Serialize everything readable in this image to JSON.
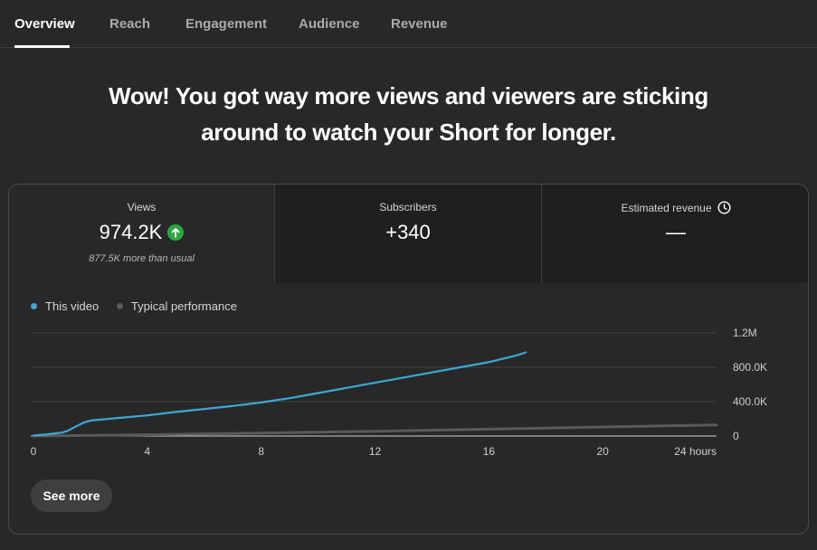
{
  "tabs": [
    {
      "label": "Overview",
      "active": true
    },
    {
      "label": "Reach",
      "active": false
    },
    {
      "label": "Engagement",
      "active": false
    },
    {
      "label": "Audience",
      "active": false
    },
    {
      "label": "Revenue",
      "active": false
    }
  ],
  "headline": {
    "line1": "Wow! You got way more views and viewers are sticking",
    "line2": "around to watch your Short for longer."
  },
  "metrics": {
    "views": {
      "label": "Views",
      "value": "974.2K",
      "sub": "877.5K more than usual",
      "trend_icon": "arrow-up-icon"
    },
    "subscribers": {
      "label": "Subscribers",
      "value": "+340"
    },
    "revenue": {
      "label": "Estimated revenue",
      "value": "—",
      "info_icon": "clock-icon"
    }
  },
  "colors": {
    "accent": "#3ea6d9",
    "typical": "#5a5a5a",
    "up": "#2ba640"
  },
  "chart_data": {
    "type": "line",
    "xlabel": "",
    "ylabel": "",
    "xlim": [
      0,
      24
    ],
    "ylim": [
      0,
      1200000
    ],
    "x_ticks": [
      "0",
      "4",
      "8",
      "12",
      "16",
      "20",
      "24 hours"
    ],
    "y_ticks": [
      "0",
      "400.0K",
      "800.0K",
      "1.2M"
    ],
    "grid": true,
    "legend": "top-left",
    "series": [
      {
        "name": "This video",
        "color": "#3ea6d9",
        "x": [
          0,
          0.5,
          1,
          1.2,
          1.4,
          1.6,
          1.8,
          2,
          3,
          4,
          5,
          6,
          7,
          8,
          9,
          10,
          11,
          12,
          13,
          14,
          15,
          16,
          17,
          17.3
        ],
        "y": [
          5000,
          20000,
          40000,
          60000,
          95000,
          130000,
          160000,
          180000,
          210000,
          240000,
          280000,
          315000,
          350000,
          390000,
          440000,
          500000,
          560000,
          620000,
          680000,
          740000,
          800000,
          860000,
          940000,
          974200
        ]
      },
      {
        "name": "Typical performance",
        "color": "#5a5a5a",
        "x": [
          0,
          4,
          8,
          12,
          16,
          20,
          24
        ],
        "y": [
          0,
          15000,
          35000,
          55000,
          80000,
          105000,
          130000
        ]
      }
    ]
  },
  "see_more": "See more"
}
